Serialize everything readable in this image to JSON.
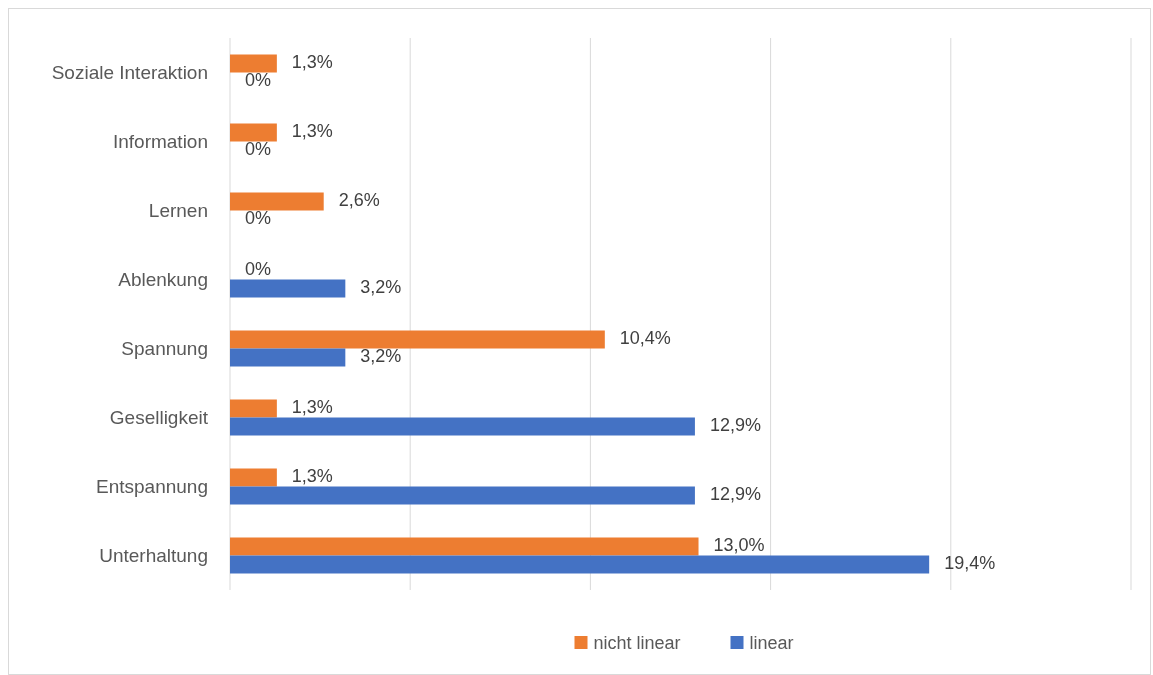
{
  "chart_data": {
    "type": "bar",
    "orientation": "horizontal",
    "categories": [
      "Soziale Interaktion",
      "Information",
      "Lernen",
      "Ablenkung",
      "Spannung",
      "Geselligkeit",
      "Entspannung",
      "Unterhaltung"
    ],
    "series": [
      {
        "name": "nicht linear",
        "color": "#ed7d31",
        "values": [
          1.3,
          1.3,
          2.6,
          0,
          10.4,
          1.3,
          1.3,
          13.0
        ],
        "value_labels": [
          "1,3%",
          "1,3%",
          "2,6%",
          "0%",
          "10,4%",
          "1,3%",
          "1,3%",
          "13,0%"
        ]
      },
      {
        "name": "linear",
        "color": "#4472c4",
        "values": [
          0,
          0,
          0,
          3.2,
          3.2,
          12.9,
          12.9,
          19.4
        ],
        "value_labels": [
          "0%",
          "0%",
          "0%",
          "3,2%",
          "3,2%",
          "12,9%",
          "12,9%",
          "19,4%"
        ]
      }
    ],
    "xlim": [
      0,
      25
    ],
    "xticks": [
      {
        "value": 0,
        "label": null
      },
      {
        "value": 5,
        "label": null
      },
      {
        "value": 10,
        "label": null
      },
      {
        "value": 15,
        "label": null
      },
      {
        "value": 20,
        "label": null
      },
      {
        "value": 25,
        "label": null
      }
    ],
    "tick_labels": "y",
    "grid": "x",
    "legend": "bottom"
  }
}
